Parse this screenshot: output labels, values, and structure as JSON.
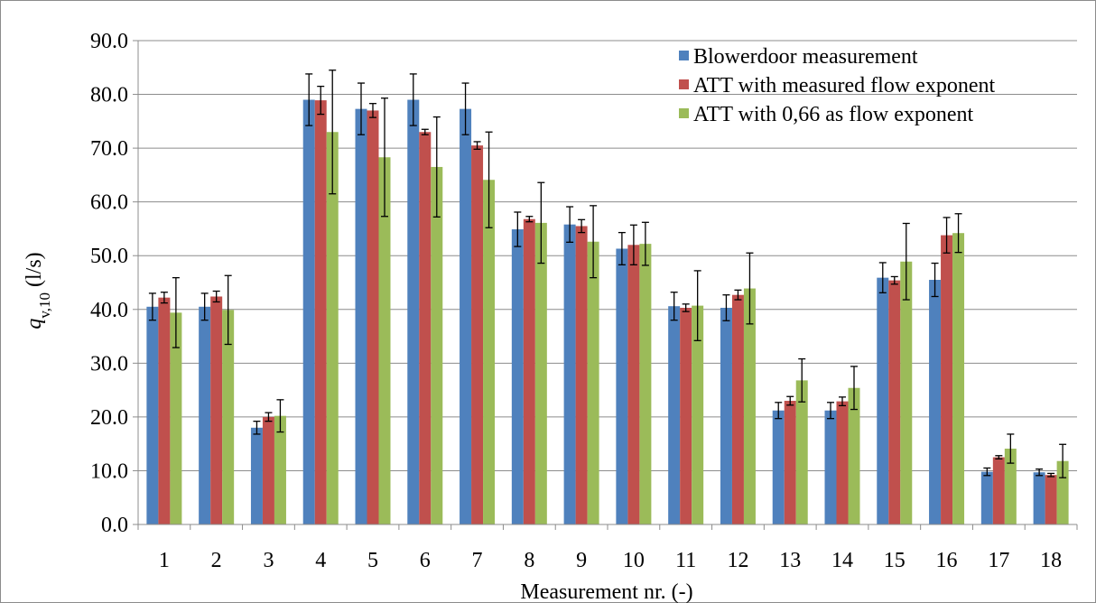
{
  "chart_data": {
    "type": "bar",
    "categories": [
      "1",
      "2",
      "3",
      "4",
      "5",
      "6",
      "7",
      "8",
      "9",
      "10",
      "11",
      "12",
      "13",
      "14",
      "15",
      "16",
      "17",
      "18"
    ],
    "series": [
      {
        "name": "Blowerdoor measurement",
        "color": "#4f81bd",
        "values": [
          40.5,
          40.5,
          18.0,
          79.0,
          77.3,
          79.0,
          77.3,
          54.9,
          55.8,
          51.3,
          40.6,
          40.3,
          21.2,
          21.2,
          45.9,
          45.5,
          9.8,
          9.7
        ],
        "errors": [
          2.5,
          2.5,
          1.2,
          4.8,
          4.8,
          4.8,
          4.8,
          3.2,
          3.3,
          3.0,
          2.6,
          2.4,
          1.5,
          1.5,
          2.8,
          3.1,
          0.7,
          0.6
        ]
      },
      {
        "name": "ATT with measured flow exponent",
        "color": "#c0504d",
        "values": [
          42.2,
          42.4,
          20.0,
          78.9,
          77.0,
          73.0,
          70.5,
          56.8,
          55.5,
          52.0,
          40.3,
          42.7,
          23.0,
          22.9,
          45.4,
          53.8,
          12.5,
          9.2
        ],
        "errors": [
          1.0,
          1.0,
          0.8,
          2.6,
          1.3,
          0.5,
          0.7,
          0.5,
          1.2,
          3.7,
          0.7,
          0.9,
          0.8,
          0.8,
          0.7,
          3.3,
          0.3,
          0.3
        ]
      },
      {
        "name": "ATT with 0,66 as flow exponent",
        "color": "#9bbb59",
        "values": [
          39.4,
          39.9,
          20.2,
          73.0,
          68.3,
          66.5,
          64.1,
          56.1,
          52.6,
          52.2,
          40.7,
          43.9,
          26.8,
          25.4,
          48.9,
          54.2,
          14.1,
          11.8
        ],
        "errors": [
          6.5,
          6.4,
          3.0,
          11.5,
          11.0,
          9.3,
          8.9,
          7.5,
          6.7,
          4.0,
          6.5,
          6.6,
          4.0,
          4.0,
          7.1,
          3.6,
          2.7,
          3.1
        ]
      }
    ],
    "ylabel_main": "q",
    "ylabel_sub": "v,10",
    "ylabel_unit": " (l/s)",
    "xlabel": "Measurement nr. (-)",
    "ylim": [
      0,
      90
    ],
    "yticks": [
      "0.0",
      "10.0",
      "20.0",
      "30.0",
      "40.0",
      "50.0",
      "60.0",
      "70.0",
      "80.0",
      "90.0"
    ],
    "grid": true,
    "legend_position": "top-right"
  }
}
